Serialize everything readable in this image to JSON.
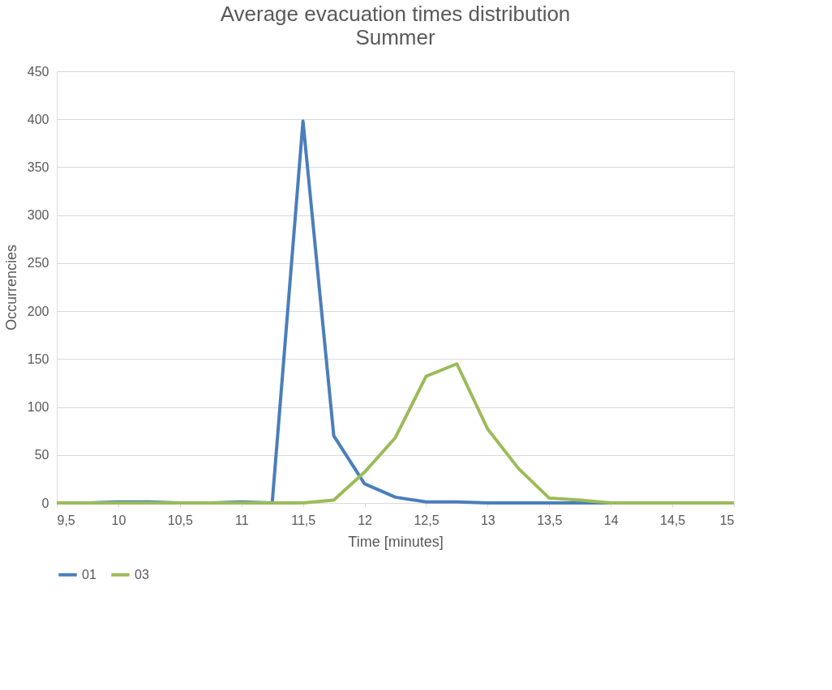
{
  "chart_data": {
    "type": "line",
    "title": "Average evacuation times distribution",
    "subtitle": "Summer",
    "xlabel": "Time [minutes]",
    "ylabel": "Occurrencies",
    "x": [
      9.5,
      9.75,
      10,
      10.25,
      10.5,
      10.75,
      11,
      11.25,
      11.5,
      11.75,
      12,
      12.25,
      12.5,
      12.75,
      13,
      13.25,
      13.5,
      13.75,
      14,
      14.25,
      14.5,
      14.75,
      15
    ],
    "series": [
      {
        "name": "01",
        "color": "#4a7ebb",
        "values": [
          0,
          0,
          1,
          1,
          0,
          0,
          1,
          0,
          398,
          70,
          20,
          6,
          1,
          1,
          0,
          0,
          0,
          0,
          0,
          0,
          null,
          null,
          null
        ]
      },
      {
        "name": "03",
        "color": "#9bbb59",
        "values": [
          0,
          0,
          0,
          0,
          0,
          0,
          0,
          0,
          0,
          3,
          32,
          68,
          132,
          145,
          77,
          36,
          5,
          3,
          0,
          0,
          0,
          0,
          0
        ]
      }
    ],
    "xlim": [
      9.5,
      15
    ],
    "xticks": [
      {
        "value": 9.5,
        "label": "9,5"
      },
      10,
      {
        "value": 10.5,
        "label": "10,5"
      },
      11,
      {
        "value": 11.5,
        "label": "11,5"
      },
      12,
      {
        "value": 12.5,
        "label": "12,5"
      },
      13,
      {
        "value": 13.5,
        "label": "13,5"
      },
      14,
      {
        "value": 14.5,
        "label": "14,5"
      },
      15
    ],
    "ylim": [
      0,
      450
    ],
    "yticks": [
      0,
      50,
      100,
      150,
      200,
      250,
      300,
      350,
      400,
      450
    ],
    "grid": "y",
    "legend": "bottom",
    "marker": "none",
    "line_style": "solid"
  }
}
